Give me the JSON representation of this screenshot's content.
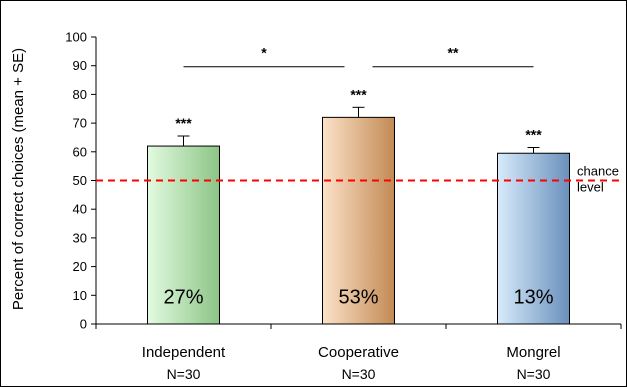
{
  "colors": {
    "chance_line": "#ff0000",
    "axis": "#000000",
    "bar_gradients": [
      [
        "#e2fbe0",
        "#8cc486"
      ],
      [
        "#fce2c8",
        "#c28a55"
      ],
      [
        "#d7ebfb",
        "#6a90bc"
      ]
    ]
  },
  "chart_data": {
    "type": "bar",
    "title": "",
    "xlabel": "",
    "ylabel": "Percent of correct choices (mean + SE)",
    "ylim": [
      0,
      100
    ],
    "yticks": [
      "0",
      "10",
      "20",
      "30",
      "40",
      "50",
      "60",
      "70",
      "80",
      "90",
      "100"
    ],
    "categories": [
      "Independent",
      "Cooperative",
      "Mongrel"
    ],
    "n_labels": [
      "N=30",
      "N=30",
      "N=30"
    ],
    "values": [
      62,
      72,
      59.5
    ],
    "errors": [
      3.5,
      3.5,
      2
    ],
    "bar_labels": [
      "27%",
      "53%",
      "13%"
    ],
    "significance": [
      "***",
      "***",
      "***"
    ],
    "reference_line": {
      "value": 50,
      "label_line1": "chance",
      "label_line2": "level"
    },
    "comparisons": [
      {
        "from": "Independent",
        "to": "Cooperative",
        "label": "*"
      },
      {
        "from": "Cooperative",
        "to": "Mongrel",
        "label": "**"
      }
    ]
  }
}
